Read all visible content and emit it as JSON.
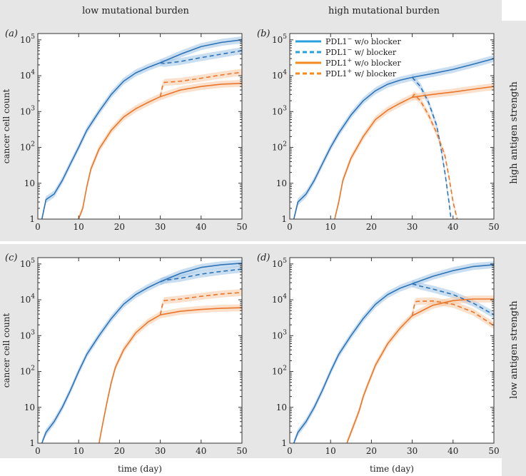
{
  "figure": {
    "column_headers": [
      "low mutational burden",
      "high mutational burden"
    ],
    "row_headers": [
      "high antigen strength",
      "low antigen strength"
    ],
    "legend": [
      {
        "label_base": "PDL1",
        "sup": "−",
        "label_rest": " w/o blocker",
        "color": "#2b9fdb",
        "dash": false
      },
      {
        "label_base": "PDL1",
        "sup": "−",
        "label_rest": " w/ blocker",
        "color": "#2b9fdb",
        "dash": true
      },
      {
        "label_base": "PDL1",
        "sup": "+",
        "label_rest": " w/o blocker",
        "color": "#f28a1e",
        "dash": false
      },
      {
        "label_base": "PDL1",
        "sup": "+",
        "label_rest": " w/ blocker",
        "color": "#f28a1e",
        "dash": true
      }
    ],
    "colors": {
      "header_bg": "#e6e6e6",
      "neg_line": "#2e73b5",
      "pos_line": "#e9762b",
      "neg_band": "#9cc3e6",
      "pos_band": "#f7c7a1"
    }
  },
  "chart_data": [
    {
      "panel": "(a)",
      "type": "line",
      "xlabel": "",
      "ylabel": "cancer cell count",
      "xlim": [
        0,
        50
      ],
      "ylim": [
        1,
        150000
      ],
      "yscale": "log",
      "xticks": [
        "0",
        "10",
        "20",
        "30",
        "40",
        "50"
      ],
      "yticks": [
        "1",
        "10",
        "10^2",
        "10^3",
        "10^4",
        "10^5"
      ],
      "series": [
        {
          "name": "PDL1− w/o blocker",
          "style": "solid",
          "color": "neg",
          "x": [
            1,
            2,
            4,
            6,
            8,
            10,
            12,
            15,
            18,
            21,
            24,
            27,
            30,
            35,
            40,
            45,
            50
          ],
          "y": [
            1,
            3.5,
            5,
            12,
            35,
            100,
            300,
            1000,
            3000,
            7000,
            12000,
            17000,
            23000,
            40000,
            65000,
            85000,
            100000
          ]
        },
        {
          "name": "PDL1− w/ blocker",
          "style": "dash",
          "color": "neg",
          "x": [
            30,
            31,
            35,
            40,
            45,
            50
          ],
          "y": [
            23000,
            22000,
            25000,
            32000,
            40000,
            50000
          ]
        },
        {
          "name": "PDL1+ w/o blocker",
          "style": "solid",
          "color": "pos",
          "x": [
            10,
            11,
            12,
            13,
            15,
            18,
            21,
            24,
            27,
            30,
            35,
            40,
            45,
            50
          ],
          "y": [
            1,
            2,
            8,
            25,
            90,
            300,
            700,
            1200,
            1800,
            2600,
            4000,
            5000,
            5800,
            6100
          ]
        },
        {
          "name": "PDL1+ w/ blocker",
          "style": "dash",
          "color": "pos",
          "x": [
            30,
            30.6,
            31,
            35,
            40,
            45,
            50
          ],
          "y": [
            2600,
            5500,
            6500,
            7000,
            8500,
            10500,
            12500
          ]
        }
      ]
    },
    {
      "panel": "(b)",
      "type": "line",
      "xlabel": "",
      "ylabel": "",
      "xlim": [
        0,
        50
      ],
      "ylim": [
        1,
        150000
      ],
      "yscale": "log",
      "xticks": [
        "0",
        "10",
        "20",
        "30",
        "40",
        "50"
      ],
      "yticks": [
        "1",
        "10",
        "10^2",
        "10^3",
        "10^4",
        "10^5"
      ],
      "series": [
        {
          "name": "PDL1− w/o blocker",
          "style": "solid",
          "color": "neg",
          "x": [
            1,
            2,
            4,
            6,
            8,
            10,
            12,
            15,
            18,
            21,
            24,
            27,
            30,
            35,
            40,
            45,
            50
          ],
          "y": [
            1,
            3,
            5,
            12,
            35,
            100,
            250,
            800,
            2000,
            3800,
            5800,
            7500,
            9000,
            11500,
            15000,
            21000,
            30000
          ]
        },
        {
          "name": "PDL1− w/ blocker",
          "style": "dash",
          "color": "neg",
          "x": [
            30,
            32,
            34,
            36,
            37,
            38,
            39,
            39.5
          ],
          "y": [
            9000,
            5000,
            1800,
            400,
            100,
            20,
            3,
            1
          ]
        },
        {
          "name": "PDL1+ w/o blocker",
          "style": "solid",
          "color": "pos",
          "x": [
            11,
            12,
            13,
            15,
            18,
            21,
            24,
            27,
            30,
            35,
            40,
            45,
            50
          ],
          "y": [
            1,
            3,
            12,
            50,
            200,
            600,
            1100,
            1700,
            2500,
            3000,
            3500,
            4200,
            5000
          ]
        },
        {
          "name": "PDL1+ w/ blocker",
          "style": "dash",
          "color": "pos",
          "x": [
            30,
            30.5,
            32,
            34,
            36,
            38,
            39,
            40,
            41
          ],
          "y": [
            2500,
            3000,
            2000,
            800,
            250,
            60,
            15,
            3,
            1
          ]
        }
      ]
    },
    {
      "panel": "(c)",
      "type": "line",
      "xlabel": "time (day)",
      "ylabel": "cancer cell count",
      "xlim": [
        0,
        50
      ],
      "ylim": [
        1,
        150000
      ],
      "yscale": "log",
      "xticks": [
        "0",
        "10",
        "20",
        "30",
        "40",
        "50"
      ],
      "yticks": [
        "1",
        "10",
        "10^2",
        "10^3",
        "10^4",
        "10^5"
      ],
      "series": [
        {
          "name": "PDL1− w/o blocker",
          "style": "solid",
          "color": "neg",
          "x": [
            1,
            2,
            4,
            6,
            8,
            10,
            12,
            15,
            18,
            21,
            24,
            27,
            30,
            35,
            40,
            45,
            50
          ],
          "y": [
            1,
            2,
            4,
            10,
            30,
            100,
            300,
            1000,
            3000,
            7500,
            14000,
            22000,
            32000,
            55000,
            80000,
            95000,
            105000
          ]
        },
        {
          "name": "PDL1− w/ blocker",
          "style": "dash",
          "color": "neg",
          "x": [
            30,
            31,
            35,
            40,
            45,
            50
          ],
          "y": [
            32000,
            35000,
            40000,
            52000,
            62000,
            72000
          ]
        },
        {
          "name": "PDL1+ w/o blocker",
          "style": "solid",
          "color": "pos",
          "x": [
            15,
            16,
            17,
            18,
            19,
            21,
            24,
            27,
            30,
            35,
            40,
            45,
            50
          ],
          "y": [
            1,
            4,
            15,
            50,
            130,
            400,
            1200,
            2400,
            3800,
            4800,
            5400,
            5800,
            6000
          ]
        },
        {
          "name": "PDL1+ w/ blocker",
          "style": "dash",
          "color": "pos",
          "x": [
            30,
            30.6,
            31,
            35,
            40,
            45,
            50
          ],
          "y": [
            3800,
            8000,
            9500,
            10500,
            12500,
            14500,
            16000
          ]
        }
      ]
    },
    {
      "panel": "(d)",
      "type": "line",
      "xlabel": "time (day)",
      "ylabel": "",
      "xlim": [
        0,
        50
      ],
      "ylim": [
        1,
        150000
      ],
      "yscale": "log",
      "xticks": [
        "0",
        "10",
        "20",
        "30",
        "40",
        "50"
      ],
      "yticks": [
        "1",
        "10",
        "10^2",
        "10^3",
        "10^4",
        "10^5"
      ],
      "series": [
        {
          "name": "PDL1− w/o blocker",
          "style": "solid",
          "color": "neg",
          "x": [
            1,
            2,
            4,
            6,
            8,
            10,
            12,
            15,
            18,
            21,
            24,
            27,
            30,
            35,
            40,
            45,
            50
          ],
          "y": [
            1,
            2,
            4,
            10,
            30,
            100,
            300,
            1000,
            3000,
            7500,
            14000,
            21000,
            28000,
            45000,
            65000,
            85000,
            95000
          ]
        },
        {
          "name": "PDL1− w/ blocker",
          "style": "dash",
          "color": "neg",
          "x": [
            30,
            32,
            35,
            40,
            45,
            50
          ],
          "y": [
            28000,
            24000,
            20000,
            14000,
            8000,
            3800
          ]
        },
        {
          "name": "PDL1+ w/o blocker",
          "style": "solid",
          "color": "pos",
          "x": [
            14,
            15,
            16,
            17,
            18,
            19,
            21,
            24,
            27,
            30,
            35,
            40,
            45,
            50
          ],
          "y": [
            1,
            2,
            4,
            8,
            20,
            40,
            150,
            600,
            1600,
            3600,
            7000,
            9500,
            10500,
            10500
          ]
        },
        {
          "name": "PDL1+ w/ blocker",
          "style": "dash",
          "color": "pos",
          "x": [
            30,
            30.6,
            31,
            35,
            40,
            45,
            50
          ],
          "y": [
            3600,
            8000,
            9000,
            9300,
            7500,
            4500,
            1900
          ]
        }
      ]
    }
  ]
}
